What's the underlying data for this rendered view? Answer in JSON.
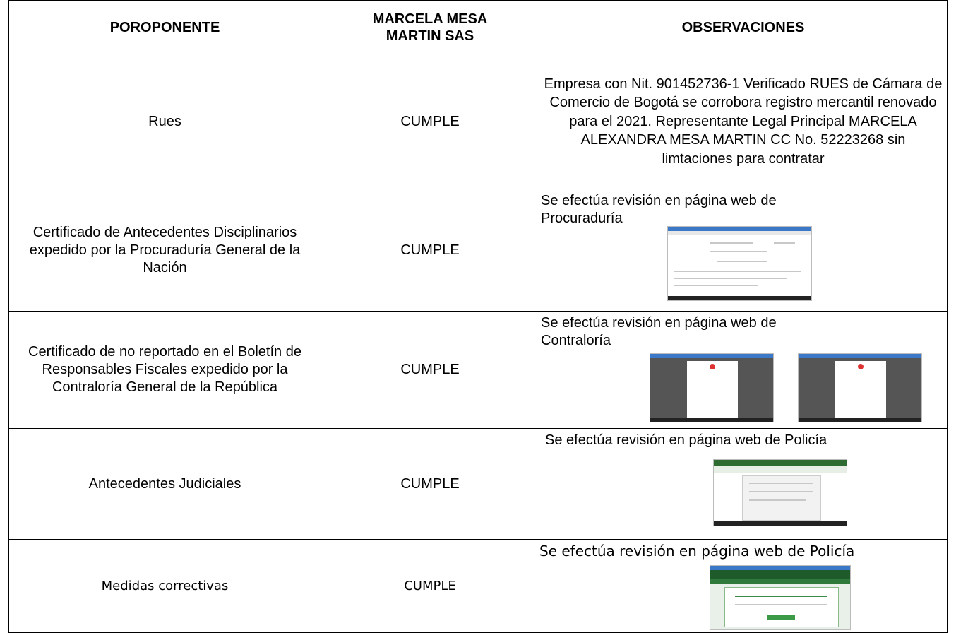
{
  "table": {
    "header": [
      "POROPONENTE",
      "MARCELA MESA MARTIN SAS",
      "OBSERVACIONES"
    ],
    "rows": [
      [
        "Rues",
        "CUMPLE",
        "Empresa con Nit. 901452736-1 Verificado RUES de Cámara de Comercio de Bogotá se corrobora registro mercantil renovado para el 2021. Representante Legal Principal MARCELA ALEXANDRA MESA MARTIN CC No.  52223268 sin limtaciones para contratar"
      ],
      [
        "Certificado de Antecedentes Disciplinarios expedido por la Procuraduría General de la Nación",
        "CUMPLE",
        "Se efectúa revisión en página web de Procuraduría"
      ],
      [
        "Certificado de no reportado en el Boletín de Responsables Fiscales expedido por la Contraloría General de la República",
        "CUMPLE",
        "Se efectúa revisión en página web de Contraloría"
      ],
      [
        "Antecedentes Judiciales",
        "CUMPLE",
        "Se efectúa revisión en página web de Policía"
      ],
      [
        "Medidas correctivas",
        "CUMPLE",
        "Se efectúa revisión en página web de Policía"
      ]
    ]
  }
}
